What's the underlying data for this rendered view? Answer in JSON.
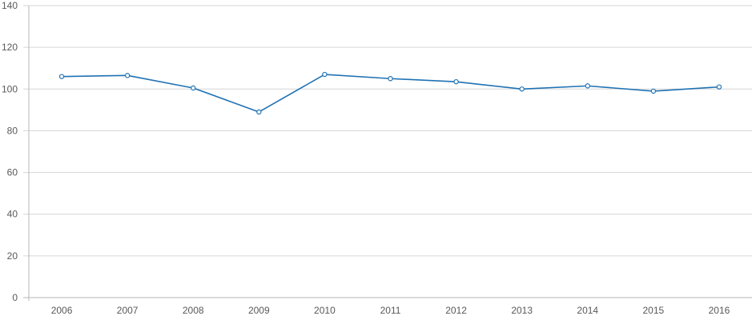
{
  "chart_data": {
    "type": "line",
    "title": "",
    "categories": [
      "2006",
      "2007",
      "2008",
      "2009",
      "2010",
      "2011",
      "2012",
      "2013",
      "2014",
      "2015",
      "2016"
    ],
    "series": [
      {
        "name": "",
        "values": [
          106,
          106.5,
          100.5,
          89,
          107,
          105,
          103.5,
          100,
          101.5,
          99,
          101
        ]
      }
    ],
    "xlabel": "",
    "ylabel": "",
    "ylim": [
      0,
      140
    ],
    "y_ticks": [
      0,
      20,
      40,
      60,
      80,
      100,
      120,
      140
    ],
    "grid": "horizontal",
    "legend_position": "none",
    "marker": "open-circle",
    "colors": {
      "line": "#1f72b4",
      "marker_fill": "#ffffff",
      "gridline": "#d6d6d6",
      "axis": "#b7b7b7",
      "tick_label": "#595959",
      "background": "#ffffff"
    }
  }
}
